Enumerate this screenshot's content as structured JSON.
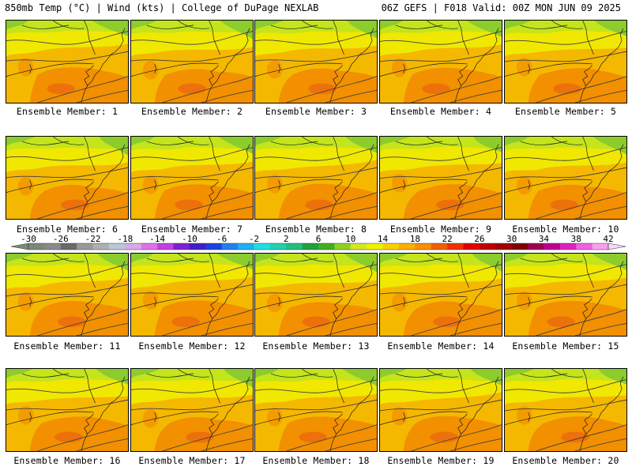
{
  "header": {
    "left": "850mb Temp (°C) | Wind (kts) | College of DuPage NEXLAB",
    "right": "06Z GEFS | F018 Valid: 00Z MON JUN 09 2025"
  },
  "panels": [
    {
      "label": "Ensemble Member: 1"
    },
    {
      "label": "Ensemble Member: 2"
    },
    {
      "label": "Ensemble Member: 3"
    },
    {
      "label": "Ensemble Member: 4"
    },
    {
      "label": "Ensemble Member: 5"
    },
    {
      "label": "Ensemble Member: 6"
    },
    {
      "label": "Ensemble Member: 7"
    },
    {
      "label": "Ensemble Member: 8"
    },
    {
      "label": "Ensemble Member: 9"
    },
    {
      "label": "Ensemble Member: 10"
    },
    {
      "label": "Ensemble Member: 11"
    },
    {
      "label": "Ensemble Member: 12"
    },
    {
      "label": "Ensemble Member: 13"
    },
    {
      "label": "Ensemble Member: 14"
    },
    {
      "label": "Ensemble Member: 15"
    },
    {
      "label": "Ensemble Member: 16"
    },
    {
      "label": "Ensemble Member: 17"
    },
    {
      "label": "Ensemble Member: 18"
    },
    {
      "label": "Ensemble Member: 19"
    },
    {
      "label": "Ensemble Member: 20"
    }
  ],
  "colorbar": {
    "labels": [
      "-30",
      "-26",
      "-22",
      "-18",
      "-14",
      "-10",
      "-6",
      "-2",
      "2",
      "6",
      "10",
      "14",
      "18",
      "22",
      "26",
      "30",
      "34",
      "38",
      "42"
    ],
    "colors": [
      "#7a8a7a",
      "#8a8a8a",
      "#6a6a6a",
      "#9a9a9a",
      "#b0b0b0",
      "#b8c8d8",
      "#d8a8e8",
      "#e070e8",
      "#c040e0",
      "#8020d0",
      "#4020c0",
      "#2040e0",
      "#2080f0",
      "#20b0f0",
      "#20e0e0",
      "#20d0b0",
      "#20c080",
      "#20a040",
      "#40b020",
      "#90d020",
      "#d0e820",
      "#f0f000",
      "#f8d000",
      "#f8b000",
      "#f89000",
      "#f06000",
      "#f03000",
      "#e00000",
      "#c00000",
      "#a00000",
      "#800000",
      "#a00050",
      "#c00090",
      "#e020c0",
      "#f060e0",
      "#f8a0f0"
    ]
  },
  "map_colors": {
    "green": "#8ccc2c",
    "lightgreen": "#c4e41c",
    "yellow": "#f0e800",
    "gold": "#f5b800",
    "orange": "#f29000",
    "darkorange": "#ec6c0c",
    "line": "#404040"
  }
}
